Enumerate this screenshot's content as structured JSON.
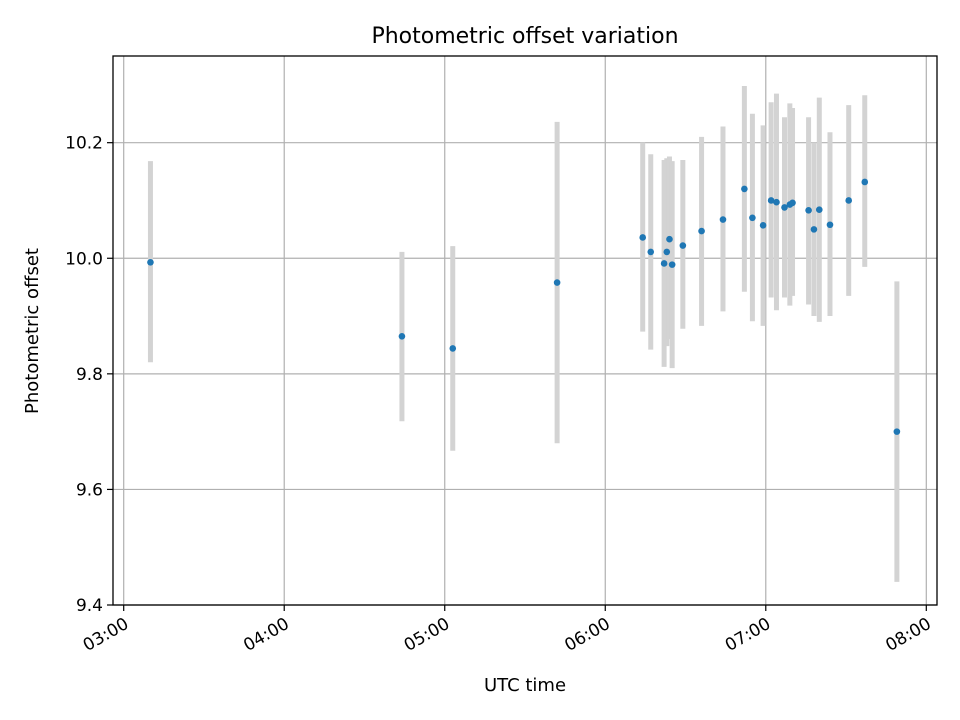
{
  "chart_data": {
    "type": "scatter",
    "title": "Photometric offset variation",
    "xlabel": "UTC time",
    "ylabel": "Photometric offset",
    "xlim": [
      "02:56",
      "08:04"
    ],
    "ylim": [
      9.4,
      10.35
    ],
    "x_ticks": [
      "03:00",
      "04:00",
      "05:00",
      "06:00",
      "07:00",
      "08:00"
    ],
    "y_ticks": [
      "9.4",
      "9.6",
      "9.8",
      "10.0",
      "10.2"
    ],
    "grid": true,
    "colors": {
      "point": "#1f77b4",
      "errorbar": "#d3d3d3"
    },
    "points": [
      {
        "x": "03:10",
        "y": 9.993,
        "lo": 9.82,
        "hi": 10.168
      },
      {
        "x": "04:44",
        "y": 9.865,
        "lo": 9.718,
        "hi": 10.011
      },
      {
        "x": "05:03",
        "y": 9.844,
        "lo": 9.667,
        "hi": 10.021
      },
      {
        "x": "05:42",
        "y": 9.958,
        "lo": 9.68,
        "hi": 10.236
      },
      {
        "x": "06:14",
        "y": 10.036,
        "lo": 9.873,
        "hi": 10.2
      },
      {
        "x": "06:17",
        "y": 10.011,
        "lo": 9.842,
        "hi": 10.18
      },
      {
        "x": "06:22",
        "y": 9.991,
        "lo": 9.812,
        "hi": 10.17
      },
      {
        "x": "06:23",
        "y": 10.011,
        "lo": 9.848,
        "hi": 10.173
      },
      {
        "x": "06:24",
        "y": 10.033,
        "lo": 9.86,
        "hi": 10.176
      },
      {
        "x": "06:25",
        "y": 9.989,
        "lo": 9.81,
        "hi": 10.168
      },
      {
        "x": "06:29",
        "y": 10.022,
        "lo": 9.878,
        "hi": 10.17
      },
      {
        "x": "06:36",
        "y": 10.047,
        "lo": 9.883,
        "hi": 10.21
      },
      {
        "x": "06:44",
        "y": 10.067,
        "lo": 9.908,
        "hi": 10.228
      },
      {
        "x": "06:52",
        "y": 10.12,
        "lo": 9.942,
        "hi": 10.298
      },
      {
        "x": "06:55",
        "y": 10.07,
        "lo": 9.891,
        "hi": 10.25
      },
      {
        "x": "06:59",
        "y": 10.057,
        "lo": 9.883,
        "hi": 10.23
      },
      {
        "x": "07:02",
        "y": 10.1,
        "lo": 9.932,
        "hi": 10.27
      },
      {
        "x": "07:04",
        "y": 10.097,
        "lo": 9.91,
        "hi": 10.285
      },
      {
        "x": "07:07",
        "y": 10.088,
        "lo": 9.932,
        "hi": 10.244
      },
      {
        "x": "07:09",
        "y": 10.093,
        "lo": 9.918,
        "hi": 10.268
      },
      {
        "x": "07:10",
        "y": 10.096,
        "lo": 9.935,
        "hi": 10.26
      },
      {
        "x": "07:16",
        "y": 10.083,
        "lo": 9.92,
        "hi": 10.244
      },
      {
        "x": "07:18",
        "y": 10.05,
        "lo": 9.9,
        "hi": 10.2
      },
      {
        "x": "07:20",
        "y": 10.084,
        "lo": 9.89,
        "hi": 10.278
      },
      {
        "x": "07:24",
        "y": 10.058,
        "lo": 9.9,
        "hi": 10.218
      },
      {
        "x": "07:31",
        "y": 10.1,
        "lo": 9.935,
        "hi": 10.265
      },
      {
        "x": "07:37",
        "y": 10.132,
        "lo": 9.985,
        "hi": 10.282
      },
      {
        "x": "07:49",
        "y": 9.7,
        "lo": 9.44,
        "hi": 9.96
      }
    ]
  }
}
